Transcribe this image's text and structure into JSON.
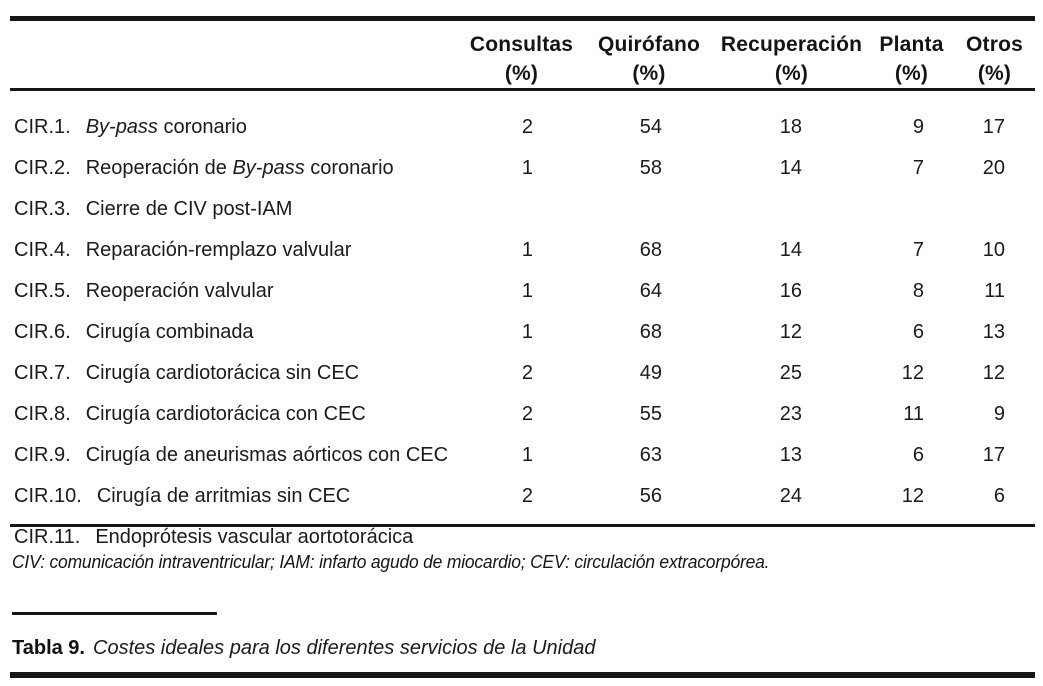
{
  "colors": {
    "text": "#1b1b1b",
    "rule": "#161616",
    "background": "#ffffff"
  },
  "table": {
    "columns": [
      {
        "label": "Consultas",
        "unit": "(%)"
      },
      {
        "label": "Quirófano",
        "unit": "(%)"
      },
      {
        "label": "Recuperación",
        "unit": "(%)"
      },
      {
        "label": "Planta",
        "unit": "(%)"
      },
      {
        "label": "Otros",
        "unit": "(%)"
      }
    ],
    "rows": [
      {
        "code": "CIR.1.",
        "name_parts": [
          {
            "text": "By-pass",
            "italic": true
          },
          {
            "text": " coronario",
            "italic": false
          }
        ],
        "values": [
          "2",
          "54",
          "18",
          "9",
          "17"
        ]
      },
      {
        "code": "CIR.2.",
        "name_parts": [
          {
            "text": "Reoperación de ",
            "italic": false
          },
          {
            "text": "By-pass",
            "italic": true
          },
          {
            "text": " coronario",
            "italic": false
          }
        ],
        "values": [
          "1",
          "58",
          "14",
          "7",
          "20"
        ]
      },
      {
        "code": "CIR.3.",
        "name_parts": [
          {
            "text": "Cierre de CIV post-IAM",
            "italic": false
          }
        ],
        "values": [
          "",
          "",
          "",
          "",
          ""
        ]
      },
      {
        "code": "CIR.4.",
        "name_parts": [
          {
            "text": "Reparación-remplazo valvular",
            "italic": false
          }
        ],
        "values": [
          "1",
          "68",
          "14",
          "7",
          "10"
        ]
      },
      {
        "code": "CIR.5.",
        "name_parts": [
          {
            "text": "Reoperación valvular",
            "italic": false
          }
        ],
        "values": [
          "1",
          "64",
          "16",
          "8",
          "11"
        ]
      },
      {
        "code": "CIR.6.",
        "name_parts": [
          {
            "text": "Cirugía combinada",
            "italic": false
          }
        ],
        "values": [
          "1",
          "68",
          "12",
          "6",
          "13"
        ]
      },
      {
        "code": "CIR.7.",
        "name_parts": [
          {
            "text": "Cirugía cardiotorácica sin CEC",
            "italic": false
          }
        ],
        "values": [
          "2",
          "49",
          "25",
          "12",
          "12"
        ]
      },
      {
        "code": "CIR.8.",
        "name_parts": [
          {
            "text": "Cirugía cardiotorácica con CEC",
            "italic": false
          }
        ],
        "values": [
          "2",
          "55",
          "23",
          "11",
          "9"
        ]
      },
      {
        "code": "CIR.9.",
        "name_parts": [
          {
            "text": "Cirugía de aneurismas aórticos con CEC",
            "italic": false
          }
        ],
        "values": [
          "1",
          "63",
          "13",
          "6",
          "17"
        ]
      },
      {
        "code": "CIR.10.",
        "name_parts": [
          {
            "text": "Cirugía de arritmias sin CEC",
            "italic": false
          }
        ],
        "values": [
          "2",
          "56",
          "24",
          "12",
          "6"
        ]
      },
      {
        "code": "CIR.11.",
        "name_parts": [
          {
            "text": "Endoprótesis vascular aortotorácica",
            "italic": false
          }
        ],
        "values": [
          "",
          "",
          "",
          "",
          ""
        ]
      }
    ]
  },
  "footnote": "CIV: comunicación intraventricular; IAM: infarto agudo de miocardio; CEV: circulación extracorpórea.",
  "caption": {
    "label": "Tabla 9.",
    "text": "Costes ideales para los diferentes servicios de la Unidad"
  }
}
